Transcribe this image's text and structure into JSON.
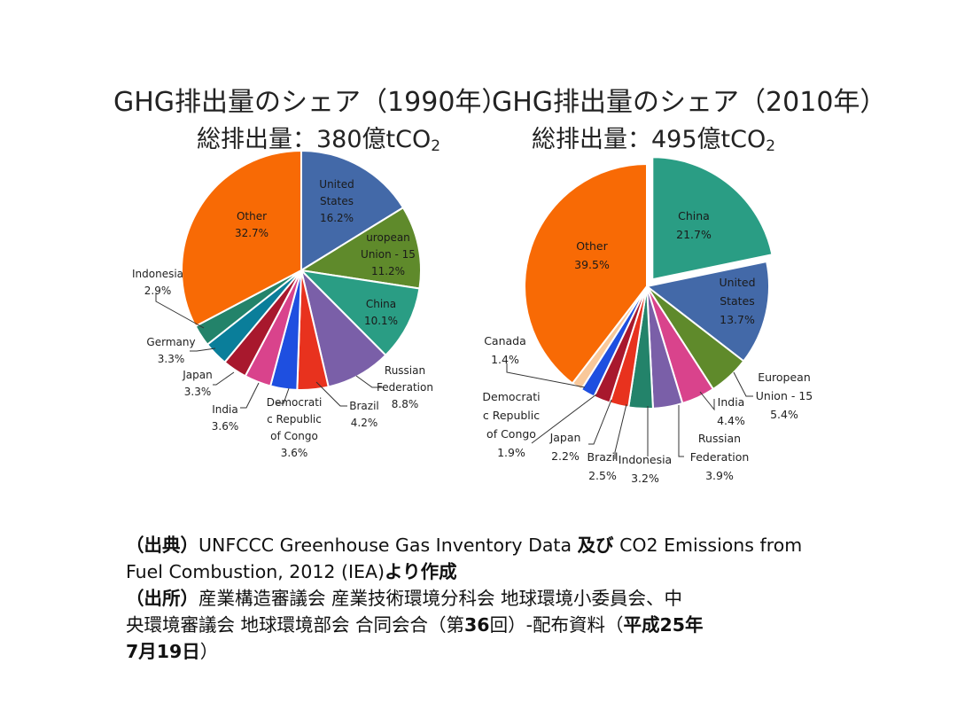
{
  "chart_data": [
    {
      "type": "pie",
      "title": "GHG排出量のシェア（1990年）",
      "subtitle_prefix": "総排出量：380億tCO",
      "subtitle_subscript": "2",
      "slices": [
        {
          "label_lines": [
            "United",
            "States"
          ],
          "value": 16.2,
          "value_text": "16.2%",
          "color": "#4369a8"
        },
        {
          "label_lines": [
            "uropean",
            "Union - 15"
          ],
          "value": 11.2,
          "value_text": "11.2%",
          "color": "#5f8a2b"
        },
        {
          "label_lines": [
            "China"
          ],
          "value": 10.1,
          "value_text": "10.1%",
          "color": "#2a9d84"
        },
        {
          "label_lines": [
            "Russian",
            "Federation"
          ],
          "value": 8.8,
          "value_text": "8.8%",
          "color": "#7a5fa8"
        },
        {
          "label_lines": [
            "Brazil"
          ],
          "value": 4.2,
          "value_text": "4.2%",
          "color": "#e8321e"
        },
        {
          "label_lines": [
            "Democrati",
            "c Republic",
            "of Congo"
          ],
          "value": 3.6,
          "value_text": "3.6%",
          "color": "#1e4fe0"
        },
        {
          "label_lines": [
            "India"
          ],
          "value": 3.6,
          "value_text": "3.6%",
          "color": "#d9438c"
        },
        {
          "label_lines": [
            "Japan"
          ],
          "value": 3.3,
          "value_text": "3.3%",
          "color": "#a8182d"
        },
        {
          "label_lines": [
            "Germany"
          ],
          "value": 3.3,
          "value_text": "3.3%",
          "color": "#0a7e9a"
        },
        {
          "label_lines": [
            "Indonesia"
          ],
          "value": 2.9,
          "value_text": "2.9%",
          "color": "#23836a"
        },
        {
          "label_lines": [
            "Other"
          ],
          "value": 32.7,
          "value_text": "32.7%",
          "color": "#f86a05"
        }
      ]
    },
    {
      "type": "pie",
      "title": "GHG排出量のシェア（2010年）",
      "subtitle_prefix": "総排出量：495億tCO",
      "subtitle_subscript": "2",
      "slices": [
        {
          "label_lines": [
            "China"
          ],
          "value": 21.7,
          "value_text": "21.7%",
          "color": "#2a9d84"
        },
        {
          "label_lines": [
            "United",
            "States"
          ],
          "value": 13.7,
          "value_text": "13.7%",
          "color": "#4369a8"
        },
        {
          "label_lines": [
            "European",
            "Union - 15"
          ],
          "value": 5.4,
          "value_text": "5.4%",
          "color": "#5f8a2b"
        },
        {
          "label_lines": [
            "India"
          ],
          "value": 4.4,
          "value_text": "4.4%",
          "color": "#d9438c"
        },
        {
          "label_lines": [
            "Russian",
            "Federation"
          ],
          "value": 3.9,
          "value_text": "3.9%",
          "color": "#7a5fa8"
        },
        {
          "label_lines": [
            "Indonesia"
          ],
          "value": 3.2,
          "value_text": "3.2%",
          "color": "#23836a"
        },
        {
          "label_lines": [
            "Brazil"
          ],
          "value": 2.5,
          "value_text": "2.5%",
          "color": "#e8321e"
        },
        {
          "label_lines": [
            "Japan"
          ],
          "value": 2.2,
          "value_text": "2.2%",
          "color": "#a8182d"
        },
        {
          "label_lines": [
            "Democrati",
            "c Republic",
            "of Congo"
          ],
          "value": 1.9,
          "value_text": "1.9%",
          "color": "#1e4fe0"
        },
        {
          "label_lines": [
            "Canada"
          ],
          "value": 1.4,
          "value_text": "1.4%",
          "color": "#f9c89a"
        },
        {
          "label_lines": [
            "Other"
          ],
          "value": 39.5,
          "value_text": "39.5%",
          "color": "#f86a05"
        }
      ]
    }
  ],
  "source": {
    "line1_prefix": "（出典）",
    "line1_a": "UNFCCC Greenhouse Gas Inventory Data ",
    "line1_and": "及び",
    "line1_b": " CO2 Emissions from",
    "line2_a": "Fuel Combustion, 2012 (IEA)",
    "line2_b": "より作成",
    "line3_prefix": "（出所）",
    "line3_a": "産業構造審議会 産業技術環境分科会 地球環境小委員会、中",
    "line4_a": "央環境審議会 地球環境部会 合同会合（第",
    "line4_b": "36",
    "line4_c": "回）-配布資料（",
    "line4_d": "平成25年",
    "line5_a": "7月19日",
    "line5_b": "）"
  }
}
